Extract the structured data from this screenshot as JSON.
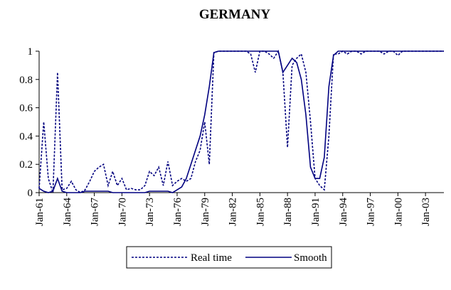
{
  "chart_data": {
    "type": "line",
    "title": "GERMANY",
    "categories": [
      "Jan-61",
      null,
      null,
      null,
      null,
      null,
      "Jan-64",
      null,
      null,
      null,
      null,
      null,
      "Jan-67",
      null,
      null,
      null,
      null,
      null,
      "Jan-70",
      null,
      null,
      null,
      null,
      null,
      "Jan-73",
      null,
      null,
      null,
      null,
      null,
      "Jan-76",
      null,
      null,
      null,
      null,
      null,
      "Jan-79",
      null,
      null,
      null,
      null,
      null,
      "Jan-82",
      null,
      null,
      null,
      null,
      null,
      "Jan-85",
      null,
      null,
      null,
      null,
      null,
      "Jan-88",
      null,
      null,
      null,
      null,
      null,
      "Jan-91",
      null,
      null,
      null,
      null,
      null,
      "Jan-94",
      null,
      null,
      null,
      null,
      null,
      "Jan-97",
      null,
      null,
      null,
      null,
      null,
      "Jan-00",
      null,
      null,
      null,
      null,
      null,
      "Jan-03",
      null,
      null,
      null,
      null
    ],
    "series": [
      {
        "name": "Real time",
        "color": "#000080",
        "style": "dotted",
        "values": [
          0.03,
          0.5,
          0.1,
          0,
          0.85,
          0.02,
          0.03,
          0.08,
          0.02,
          0,
          0.02,
          0.08,
          0.15,
          0.18,
          0.2,
          0.05,
          0.15,
          0.05,
          0.1,
          0.02,
          0.03,
          0.02,
          0.02,
          0.05,
          0.15,
          0.12,
          0.18,
          0.05,
          0.22,
          0.05,
          0.08,
          0.1,
          0.08,
          0.1,
          0.22,
          0.3,
          0.5,
          0.2,
          0.99,
          1,
          1,
          1,
          1,
          1,
          1,
          1,
          0.98,
          0.85,
          1,
          1,
          0.98,
          0.95,
          1,
          0.85,
          0.32,
          0.9,
          0.95,
          0.98,
          0.85,
          0.5,
          0.1,
          0.05,
          0.02,
          0.4,
          0.98,
          0.98,
          1,
          0.98,
          1,
          1,
          0.98,
          1,
          1,
          1,
          1,
          0.98,
          1,
          1,
          0.97,
          1,
          1,
          1,
          1,
          1,
          1,
          1,
          1,
          1,
          1
        ]
      },
      {
        "name": "Smooth",
        "color": "#000080",
        "style": "solid",
        "values": [
          0.03,
          0.01,
          0,
          0.01,
          0.1,
          0.01,
          0,
          0,
          0,
          0,
          0.01,
          0.01,
          0.01,
          0.01,
          0.01,
          0.01,
          0,
          0,
          0,
          0,
          0,
          0,
          0,
          0,
          0.01,
          0.01,
          0.01,
          0.01,
          0.01,
          0,
          0.02,
          0.04,
          0.1,
          0.2,
          0.3,
          0.4,
          0.55,
          0.75,
          0.99,
          1,
          1,
          1,
          1,
          1,
          1,
          1,
          1,
          1,
          1,
          1,
          1,
          1,
          1,
          0.85,
          0.9,
          0.95,
          0.92,
          0.8,
          0.55,
          0.18,
          0.1,
          0.1,
          0.25,
          0.75,
          0.97,
          1,
          1,
          1,
          1,
          1,
          1,
          1,
          1,
          1,
          1,
          1,
          1,
          1,
          1,
          1,
          1,
          1,
          1,
          1,
          1,
          1,
          1,
          1,
          1
        ]
      }
    ],
    "ylim": [
      0,
      1
    ],
    "yticks": [
      0,
      0.2,
      0.4,
      0.6,
      0.8,
      1
    ],
    "legend": "bottom"
  }
}
